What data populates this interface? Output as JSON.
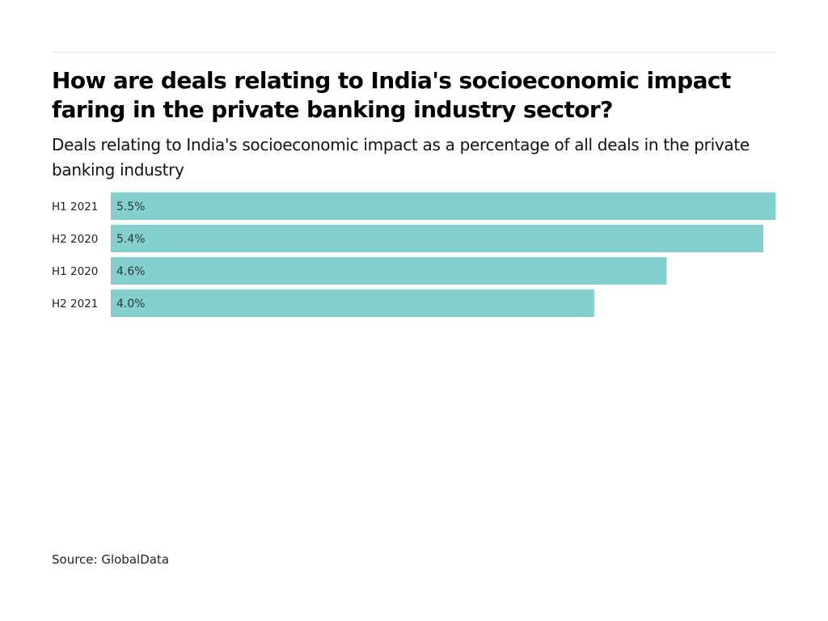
{
  "chart_data": {
    "type": "bar",
    "orientation": "horizontal",
    "title": "How are deals relating to India's socioeconomic impact faring in the private banking industry sector?",
    "subtitle": "Deals relating to India's socioeconomic impact as a percentage of all deals in the private banking industry",
    "categories": [
      "H1 2021",
      "H2 2020",
      "H1 2020",
      "H2 2021"
    ],
    "values": [
      5.5,
      5.4,
      4.6,
      4.0
    ],
    "value_labels": [
      "5.5%",
      "5.4%",
      "4.6%",
      "4.0%"
    ],
    "xlim": [
      0,
      5.5
    ],
    "grid": false,
    "legend": "none",
    "bar_color": "#84d0cf",
    "source": "Source: GlobalData"
  }
}
